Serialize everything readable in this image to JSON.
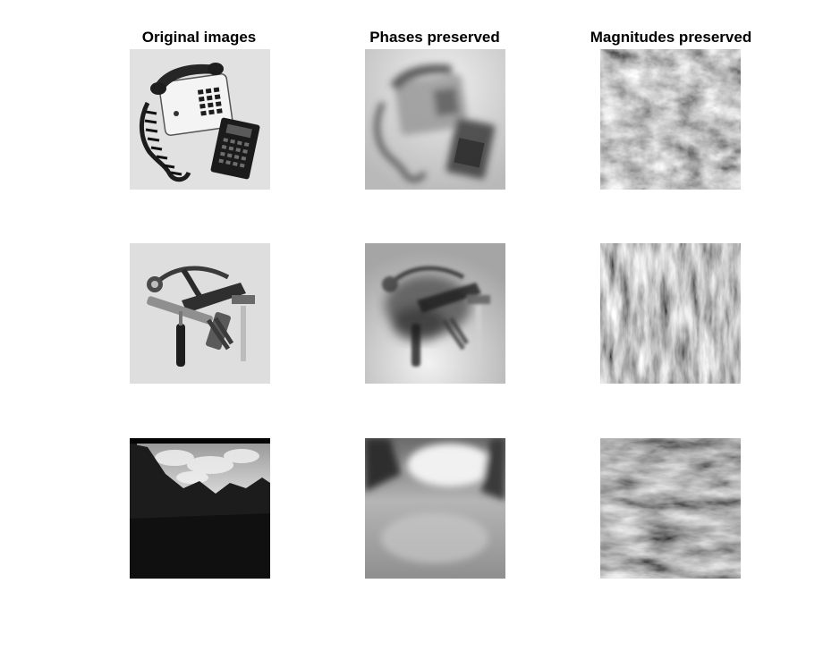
{
  "columns": [
    {
      "title": "Original images"
    },
    {
      "title": "Phases preserved"
    },
    {
      "title": "Magnitudes preserved"
    }
  ],
  "rows": [
    {
      "subject": "telephone-and-calculator"
    },
    {
      "subject": "hand-tools"
    },
    {
      "subject": "mountain-landscape"
    }
  ]
}
